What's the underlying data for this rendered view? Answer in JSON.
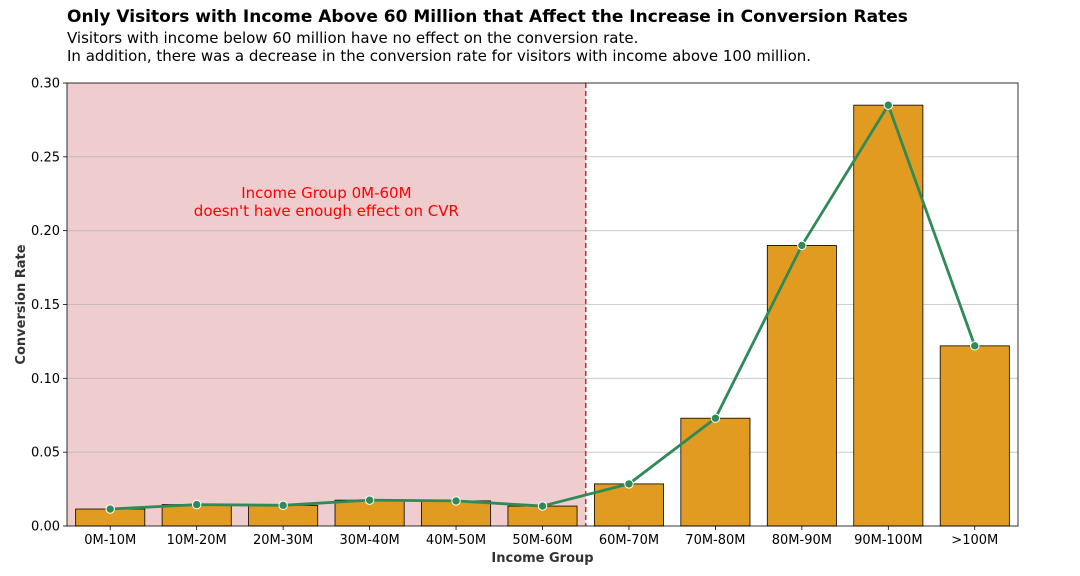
{
  "chart_data": {
    "type": "bar",
    "title": "Only Visitors with Income Above 60 Million that Affect the Increase in Conversion Rates",
    "subtitle_lines": [
      "Visitors with income below 60 million have no effect on the conversion rate.",
      "In addition, there was a decrease in the conversion rate for visitors with income above 100 million."
    ],
    "xlabel": "Income Group",
    "ylabel": "Conversion Rate",
    "categories": [
      "0M-10M",
      "10M-20M",
      "20M-30M",
      "30M-40M",
      "40M-50M",
      "50M-60M",
      "60M-70M",
      "70M-80M",
      "80M-90M",
      "90M-100M",
      ">100M"
    ],
    "values": [
      0.0115,
      0.0145,
      0.014,
      0.0175,
      0.017,
      0.0135,
      0.0285,
      0.073,
      0.19,
      0.285,
      0.122
    ],
    "ylim": [
      0,
      0.3
    ],
    "yticks": [
      "0.00",
      "0.05",
      "0.10",
      "0.15",
      "0.20",
      "0.25",
      "0.30"
    ],
    "grid": "horizontal",
    "annotation": {
      "lines": [
        "Income Group 0M-60M",
        "doesn't have enough effect on CVR"
      ],
      "color": "#ff0000"
    },
    "shaded_region": {
      "from_category": 0,
      "to_category": 5,
      "color": "#e6b0b3"
    },
    "colors": {
      "bar": "#e09b20",
      "line": "#2e8b57",
      "divider": "#e02020"
    }
  }
}
